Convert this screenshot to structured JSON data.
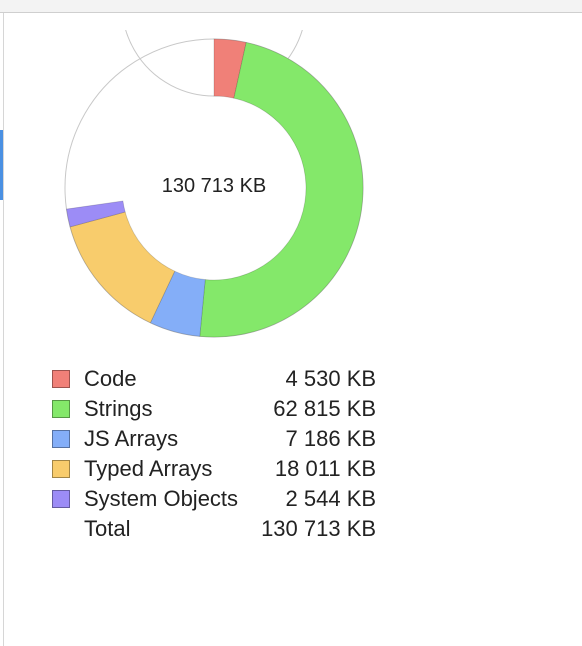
{
  "center_label": "130 713 KB",
  "chart_data": {
    "type": "pie",
    "categories": [
      "Code",
      "Strings",
      "JS Arrays",
      "Typed Arrays",
      "System Objects"
    ],
    "values": [
      4530,
      62815,
      7186,
      18011,
      2544
    ],
    "unit": "KB",
    "total": 130713,
    "colors": [
      "#f08078",
      "#84e86a",
      "#84aef8",
      "#f8cc6c",
      "#9c8cf6"
    ],
    "remainder_color": "#ffffff"
  },
  "legend": {
    "items": [
      {
        "label": "Code",
        "value": "4 530 KB",
        "color": "#f08078"
      },
      {
        "label": "Strings",
        "value": "62 815 KB",
        "color": "#84e86a"
      },
      {
        "label": "JS Arrays",
        "value": "7 186 KB",
        "color": "#84aef8"
      },
      {
        "label": "Typed Arrays",
        "value": "18 011 KB",
        "color": "#f8cc6c"
      },
      {
        "label": "System Objects",
        "value": "2 544 KB",
        "color": "#9c8cf6"
      }
    ],
    "total_label": "Total",
    "total_value": "130 713 KB"
  }
}
